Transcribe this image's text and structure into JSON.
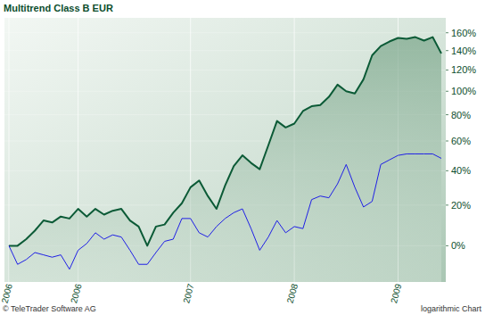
{
  "chart_data": {
    "type": "line",
    "title": "Multitrend Class B EUR",
    "annotations": [
      "© TeleTrader Software AG",
      "logarithmic Chart"
    ],
    "categories": [
      "2006",
      null,
      null,
      null,
      null,
      null,
      null,
      null,
      "2006",
      null,
      null,
      null,
      null,
      null,
      null,
      null,
      null,
      null,
      null,
      null,
      null,
      "2007",
      null,
      null,
      null,
      null,
      null,
      null,
      null,
      null,
      null,
      null,
      null,
      "2008",
      null,
      null,
      null,
      null,
      null,
      null,
      null,
      null,
      null,
      null,
      null,
      "2009",
      null,
      null,
      null,
      null,
      null
    ],
    "series": [
      {
        "color": "#0b5a36",
        "values": [
          0,
          0,
          3,
          7,
          12,
          11,
          14,
          13,
          18,
          14,
          18,
          15,
          17,
          18,
          12,
          9,
          0,
          9,
          10,
          16,
          21,
          30,
          34,
          25,
          18,
          31,
          43,
          50,
          45,
          41,
          57,
          75,
          70,
          73,
          83,
          87,
          88,
          95,
          106,
          100,
          98,
          111,
          135,
          145,
          150,
          154,
          153,
          155,
          151,
          155,
          137
        ]
      },
      {
        "color": "#1f1fe6",
        "values": [
          0,
          -8,
          -6,
          -3,
          -4,
          -5,
          -4,
          -10,
          -2,
          1,
          6,
          3,
          5,
          4,
          -2,
          -8,
          -8,
          -3,
          2,
          3,
          13,
          13,
          6,
          4,
          9,
          13,
          16,
          18,
          8,
          -2,
          4,
          12,
          6,
          9,
          8,
          23,
          25,
          24,
          32,
          44,
          30,
          19,
          22,
          44,
          47,
          50,
          51,
          51,
          51,
          51,
          48
        ]
      }
    ],
    "ylim": [
      -15,
      178
    ],
    "yticks": [
      {
        "value": 0,
        "label": "0%"
      },
      {
        "value": 20,
        "label": "20%"
      },
      {
        "value": 40,
        "label": "40%"
      },
      {
        "value": 60,
        "label": "60%"
      },
      {
        "value": 80,
        "label": "80%"
      },
      {
        "value": 100,
        "label": "100%"
      },
      {
        "value": 120,
        "label": "120%"
      },
      {
        "value": 140,
        "label": "140%"
      },
      {
        "value": 160,
        "label": "160%"
      }
    ],
    "log": "y",
    "grid": true
  }
}
